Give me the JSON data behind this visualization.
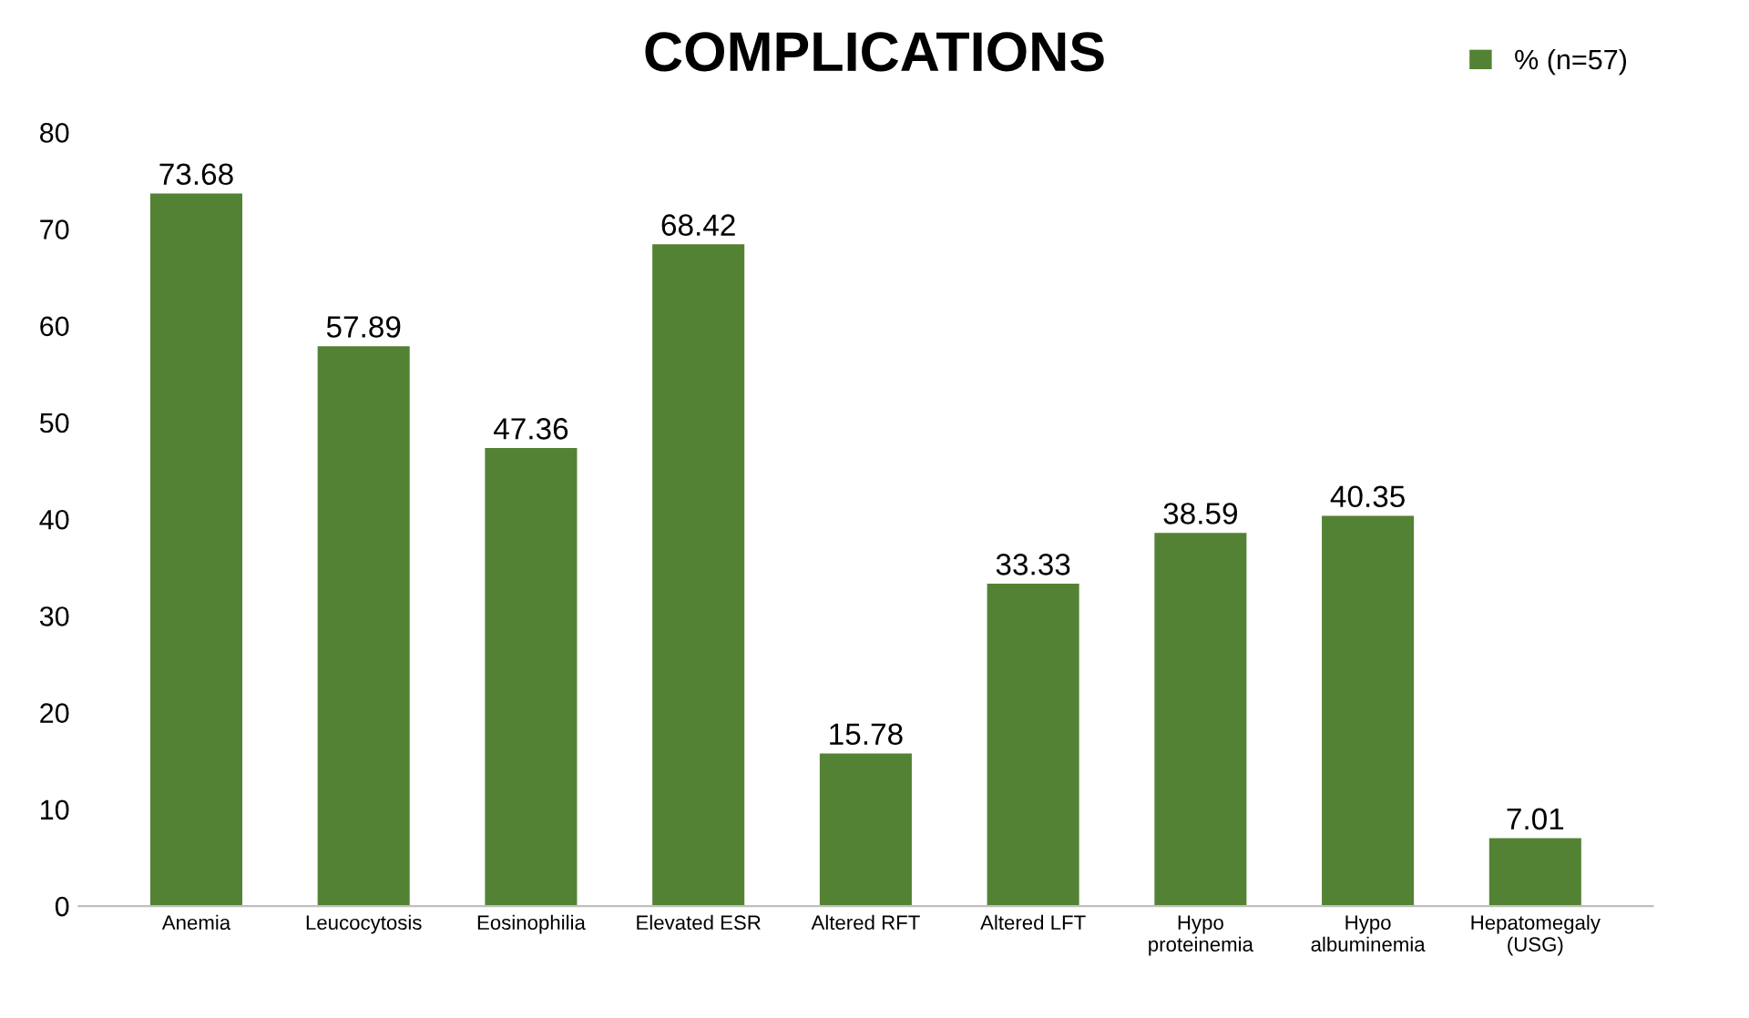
{
  "chart_data": {
    "type": "bar",
    "title": "COMPLICATIONS",
    "categories": [
      "Anemia",
      "Leucocytosis",
      "Eosinophilia",
      "Elevated ESR",
      "Altered RFT",
      "Altered LFT",
      "Hypo\nproteinemia",
      "Hypo\nalbuminemia",
      "Hepatomegaly\n(USG)"
    ],
    "series": [
      {
        "name": "% (n=57)",
        "color": "#548235",
        "values": [
          73.68,
          57.89,
          47.36,
          68.42,
          15.78,
          33.33,
          38.59,
          40.35,
          7.01
        ]
      }
    ],
    "ylim": [
      0,
      80
    ],
    "yticks": [
      0,
      10,
      20,
      30,
      40,
      50,
      60,
      70,
      80
    ],
    "grid": false,
    "legend": "top right",
    "data_labels": true
  }
}
